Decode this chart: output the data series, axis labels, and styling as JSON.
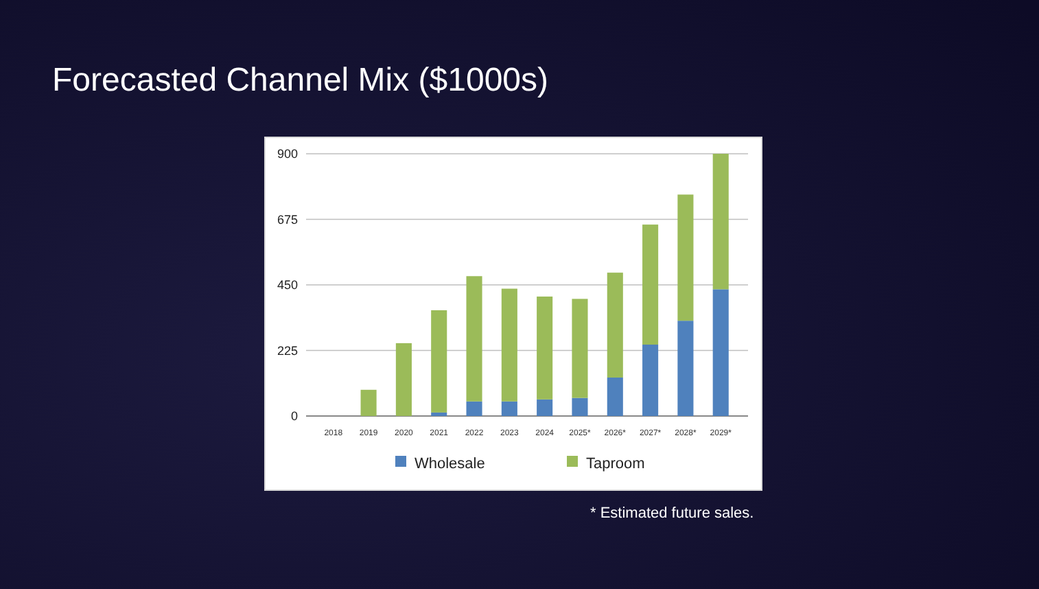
{
  "chart_data": {
    "type": "bar",
    "title": "Forecasted Channel Mix ($1000s)",
    "categories": [
      "2018",
      "2019",
      "2020",
      "2021",
      "2022",
      "2023",
      "2024",
      "2025*",
      "2026*",
      "2027*",
      "2028*",
      "2029*"
    ],
    "stacked": true,
    "series": [
      {
        "name": "Wholesale",
        "color": "#4f81bd",
        "values": [
          0,
          0,
          null,
          12,
          50,
          50,
          57,
          62,
          132,
          245,
          327,
          435
        ]
      },
      {
        "name": "Taproom",
        "color": "#9bbb59",
        "values": [
          0,
          90,
          250,
          351,
          430,
          387,
          353,
          340,
          360,
          412,
          433,
          465
        ]
      }
    ],
    "ylim": [
      0,
      900
    ],
    "yticks": [
      0,
      225,
      450,
      675,
      900
    ],
    "grid": "y",
    "legend": "bottom",
    "annotations": [
      "* Estimated future sales."
    ]
  }
}
